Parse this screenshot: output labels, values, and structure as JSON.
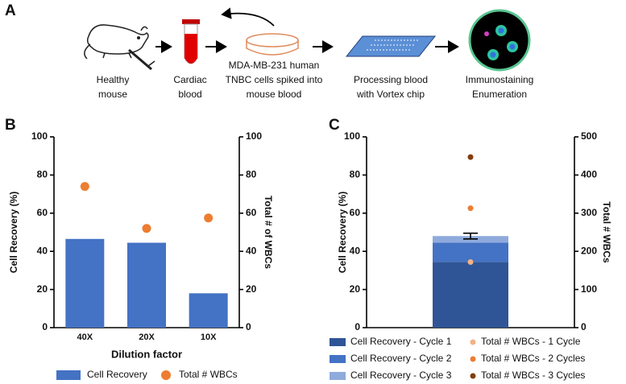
{
  "panel_labels": [
    "A",
    "B",
    "C"
  ],
  "workflow": {
    "steps": [
      {
        "lines": [
          "Healthy",
          "mouse"
        ]
      },
      {
        "lines": [
          "Cardiac",
          "blood"
        ]
      },
      {
        "lines": [
          "MDA-MB-231 human",
          "TNBC cells spiked into",
          "mouse blood"
        ]
      },
      {
        "lines": [
          "Processing blood",
          "with Vortex chip"
        ]
      },
      {
        "lines": [
          "Immunostaining",
          "Enumeration"
        ]
      }
    ]
  },
  "chart_data": [
    {
      "type": "bar",
      "x_label": "Dilution factor",
      "y_label": "Cell Recovery (%)",
      "y2_label": "Total # of WBCs",
      "categories": [
        "40X",
        "20X",
        "10X"
      ],
      "series": [
        {
          "name": "Cell Recovery",
          "color": "#4472c4",
          "values": [
            46.5,
            44.5,
            18
          ]
        },
        {
          "name": "Total # WBCs",
          "color": "#ed7d31",
          "values": [
            74,
            52,
            57.5
          ],
          "axis": "y2",
          "marker": "dot"
        }
      ],
      "ylim": [
        0,
        100
      ],
      "yticks": [
        0,
        20,
        40,
        60,
        80,
        100
      ],
      "y2lim": [
        0,
        100
      ],
      "y2ticks": [
        0,
        20,
        40,
        60,
        80,
        100
      ]
    },
    {
      "type": "stacked_bar",
      "y_label": "Cell Recovery (%)",
      "y2_label": "Total # WBCs",
      "categories": [
        null
      ],
      "series": [
        {
          "name": "Cell Recovery - Cycle 1",
          "color": "#2f5597",
          "values": [
            34.5
          ]
        },
        {
          "name": "Cell Recovery - Cycle 2",
          "color": "#4472c4",
          "values": [
            10
          ]
        },
        {
          "name": "Cell Recovery - Cycle 3",
          "color": "#8faadc",
          "values": [
            3.5
          ],
          "errors": [
            1.5
          ]
        },
        {
          "name": "Total # WBCs - 1 Cycle",
          "color": "#f4b183",
          "values": [
            172
          ],
          "axis": "y2",
          "marker": "dot"
        },
        {
          "name": "Total # WBCs - 2 Cycles",
          "color": "#ed7d31",
          "values": [
            313
          ],
          "axis": "y2",
          "marker": "dot"
        },
        {
          "name": "Total # WBCs - 3 Cycles",
          "color": "#843c0c",
          "values": [
            447
          ],
          "axis": "y2",
          "marker": "dot"
        }
      ],
      "ylim": [
        0,
        100
      ],
      "yticks": [
        0,
        20,
        40,
        60,
        80,
        100
      ],
      "y2lim": [
        0,
        500
      ],
      "y2ticks": [
        0,
        100,
        200,
        300,
        400,
        500
      ]
    }
  ]
}
